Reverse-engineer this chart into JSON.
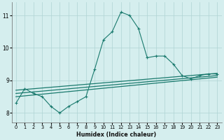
{
  "xlabel": "Humidex (Indice chaleur)",
  "ylabel": "",
  "bg_color": "#d5eeee",
  "grid_color": "#afd4d4",
  "line_color": "#1a7a6e",
  "xlim": [
    -0.5,
    23.5
  ],
  "ylim": [
    7.7,
    11.4
  ],
  "yticks": [
    8,
    9,
    10,
    11
  ],
  "xticks": [
    0,
    1,
    2,
    3,
    4,
    5,
    6,
    7,
    8,
    9,
    10,
    11,
    12,
    13,
    14,
    15,
    16,
    17,
    18,
    19,
    20,
    21,
    22,
    23
  ],
  "series": [
    {
      "x": [
        0,
        1,
        2,
        3,
        4,
        5,
        6,
        7,
        8,
        9,
        10,
        11,
        12,
        13,
        14,
        15,
        16,
        17,
        18,
        19,
        20,
        21,
        22,
        23
      ],
      "y": [
        8.3,
        8.75,
        8.6,
        8.5,
        8.2,
        8.0,
        8.2,
        8.35,
        8.5,
        9.35,
        10.25,
        10.5,
        11.1,
        11.0,
        10.6,
        9.7,
        9.75,
        9.75,
        9.5,
        9.15,
        9.05,
        9.15,
        9.2,
        9.2
      ],
      "style": "main"
    },
    {
      "x": [
        0,
        23
      ],
      "y": [
        8.5,
        9.1
      ],
      "style": "reg"
    },
    {
      "x": [
        0,
        23
      ],
      "y": [
        8.6,
        9.15
      ],
      "style": "reg"
    },
    {
      "x": [
        0,
        23
      ],
      "y": [
        8.7,
        9.22
      ],
      "style": "reg"
    }
  ]
}
